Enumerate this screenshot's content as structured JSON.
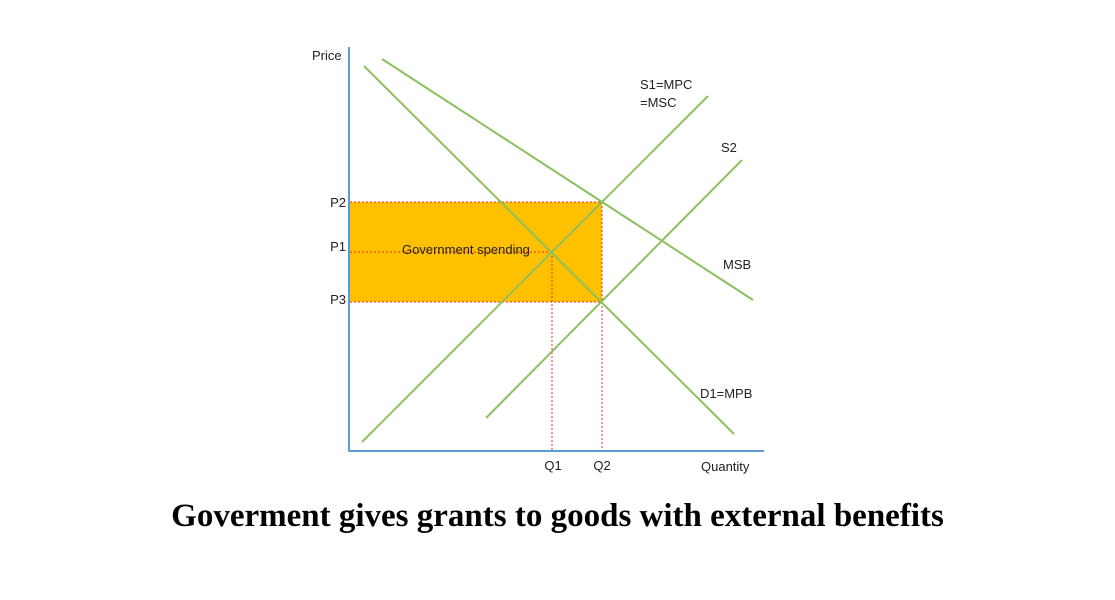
{
  "diagram": {
    "axes": {
      "y_label": "Price",
      "x_label": "Quantity"
    },
    "price_levels": [
      "P2",
      "P1",
      "P3"
    ],
    "quantity_levels": [
      "Q1",
      "Q2"
    ],
    "curves": {
      "supply_original": "S1=MPC",
      "supply_original_line2": "=MSC",
      "supply_subsidised": "S2",
      "social_benefit": "MSB",
      "private_demand": "D1=MPB"
    },
    "shaded_region": {
      "label": "Government spending",
      "color": "#FFC000"
    },
    "colors": {
      "curve": "#8DC05F",
      "axis": "#5B9BD5",
      "guide": "#E03030"
    }
  },
  "caption": "Goverment gives grants to goods with external benefits"
}
